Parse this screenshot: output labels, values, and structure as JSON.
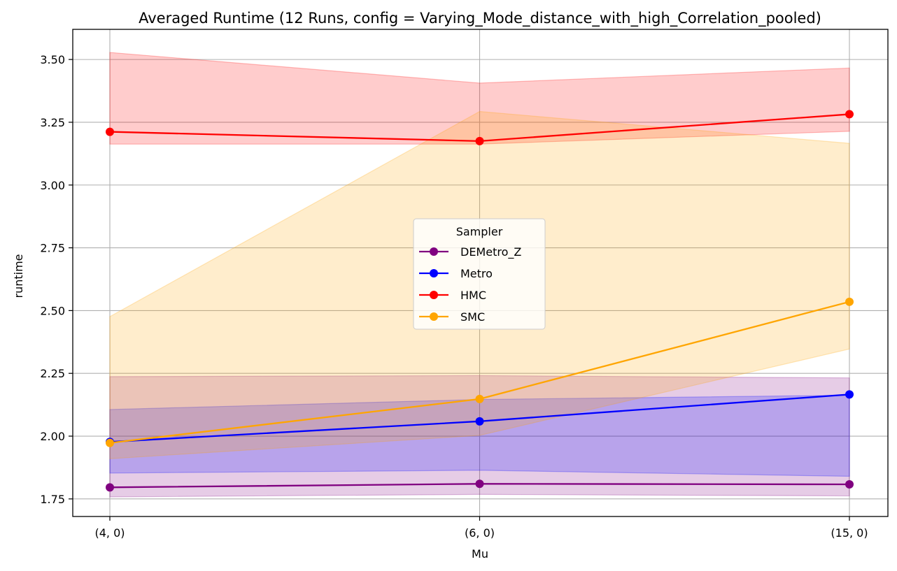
{
  "chart_data": {
    "type": "line",
    "title": "Averaged Runtime (12 Runs, config = Varying_Mode_distance_with_high_Correlation_pooled)",
    "xlabel": "Mu",
    "ylabel": "runtime",
    "categories": [
      "(4, 0)",
      "(6, 0)",
      "(15, 0)"
    ],
    "ylim": [
      1.68,
      3.62
    ],
    "yticks": [
      1.75,
      2.0,
      2.25,
      2.5,
      2.75,
      3.0,
      3.25,
      3.5
    ],
    "ytick_labels": [
      "1.75",
      "2.00",
      "2.25",
      "2.50",
      "2.75",
      "3.00",
      "3.25",
      "3.50"
    ],
    "grid": true,
    "legend": {
      "title": "Sampler",
      "placement": "center"
    },
    "series": [
      {
        "name": "DEMetro_Z",
        "color": "#800080",
        "values": [
          1.796,
          1.81,
          1.808
        ],
        "band_low": [
          1.758,
          1.768,
          1.762
        ],
        "band_high": [
          2.237,
          2.241,
          2.232
        ]
      },
      {
        "name": "Metro",
        "color": "#0000ff",
        "values": [
          1.977,
          2.059,
          2.166
        ],
        "band_low": [
          1.853,
          1.864,
          1.84
        ],
        "band_high": [
          2.106,
          2.146,
          2.163
        ]
      },
      {
        "name": "HMC",
        "color": "#ff0000",
        "values": [
          3.212,
          3.175,
          3.282
        ],
        "band_low": [
          3.163,
          3.163,
          3.214
        ],
        "band_high": [
          3.528,
          3.406,
          3.466
        ]
      },
      {
        "name": "SMC",
        "color": "#ffa500",
        "values": [
          1.973,
          2.148,
          2.535
        ],
        "band_low": [
          1.91,
          2.003,
          2.347
        ],
        "band_high": [
          2.476,
          3.293,
          3.166
        ]
      }
    ]
  }
}
